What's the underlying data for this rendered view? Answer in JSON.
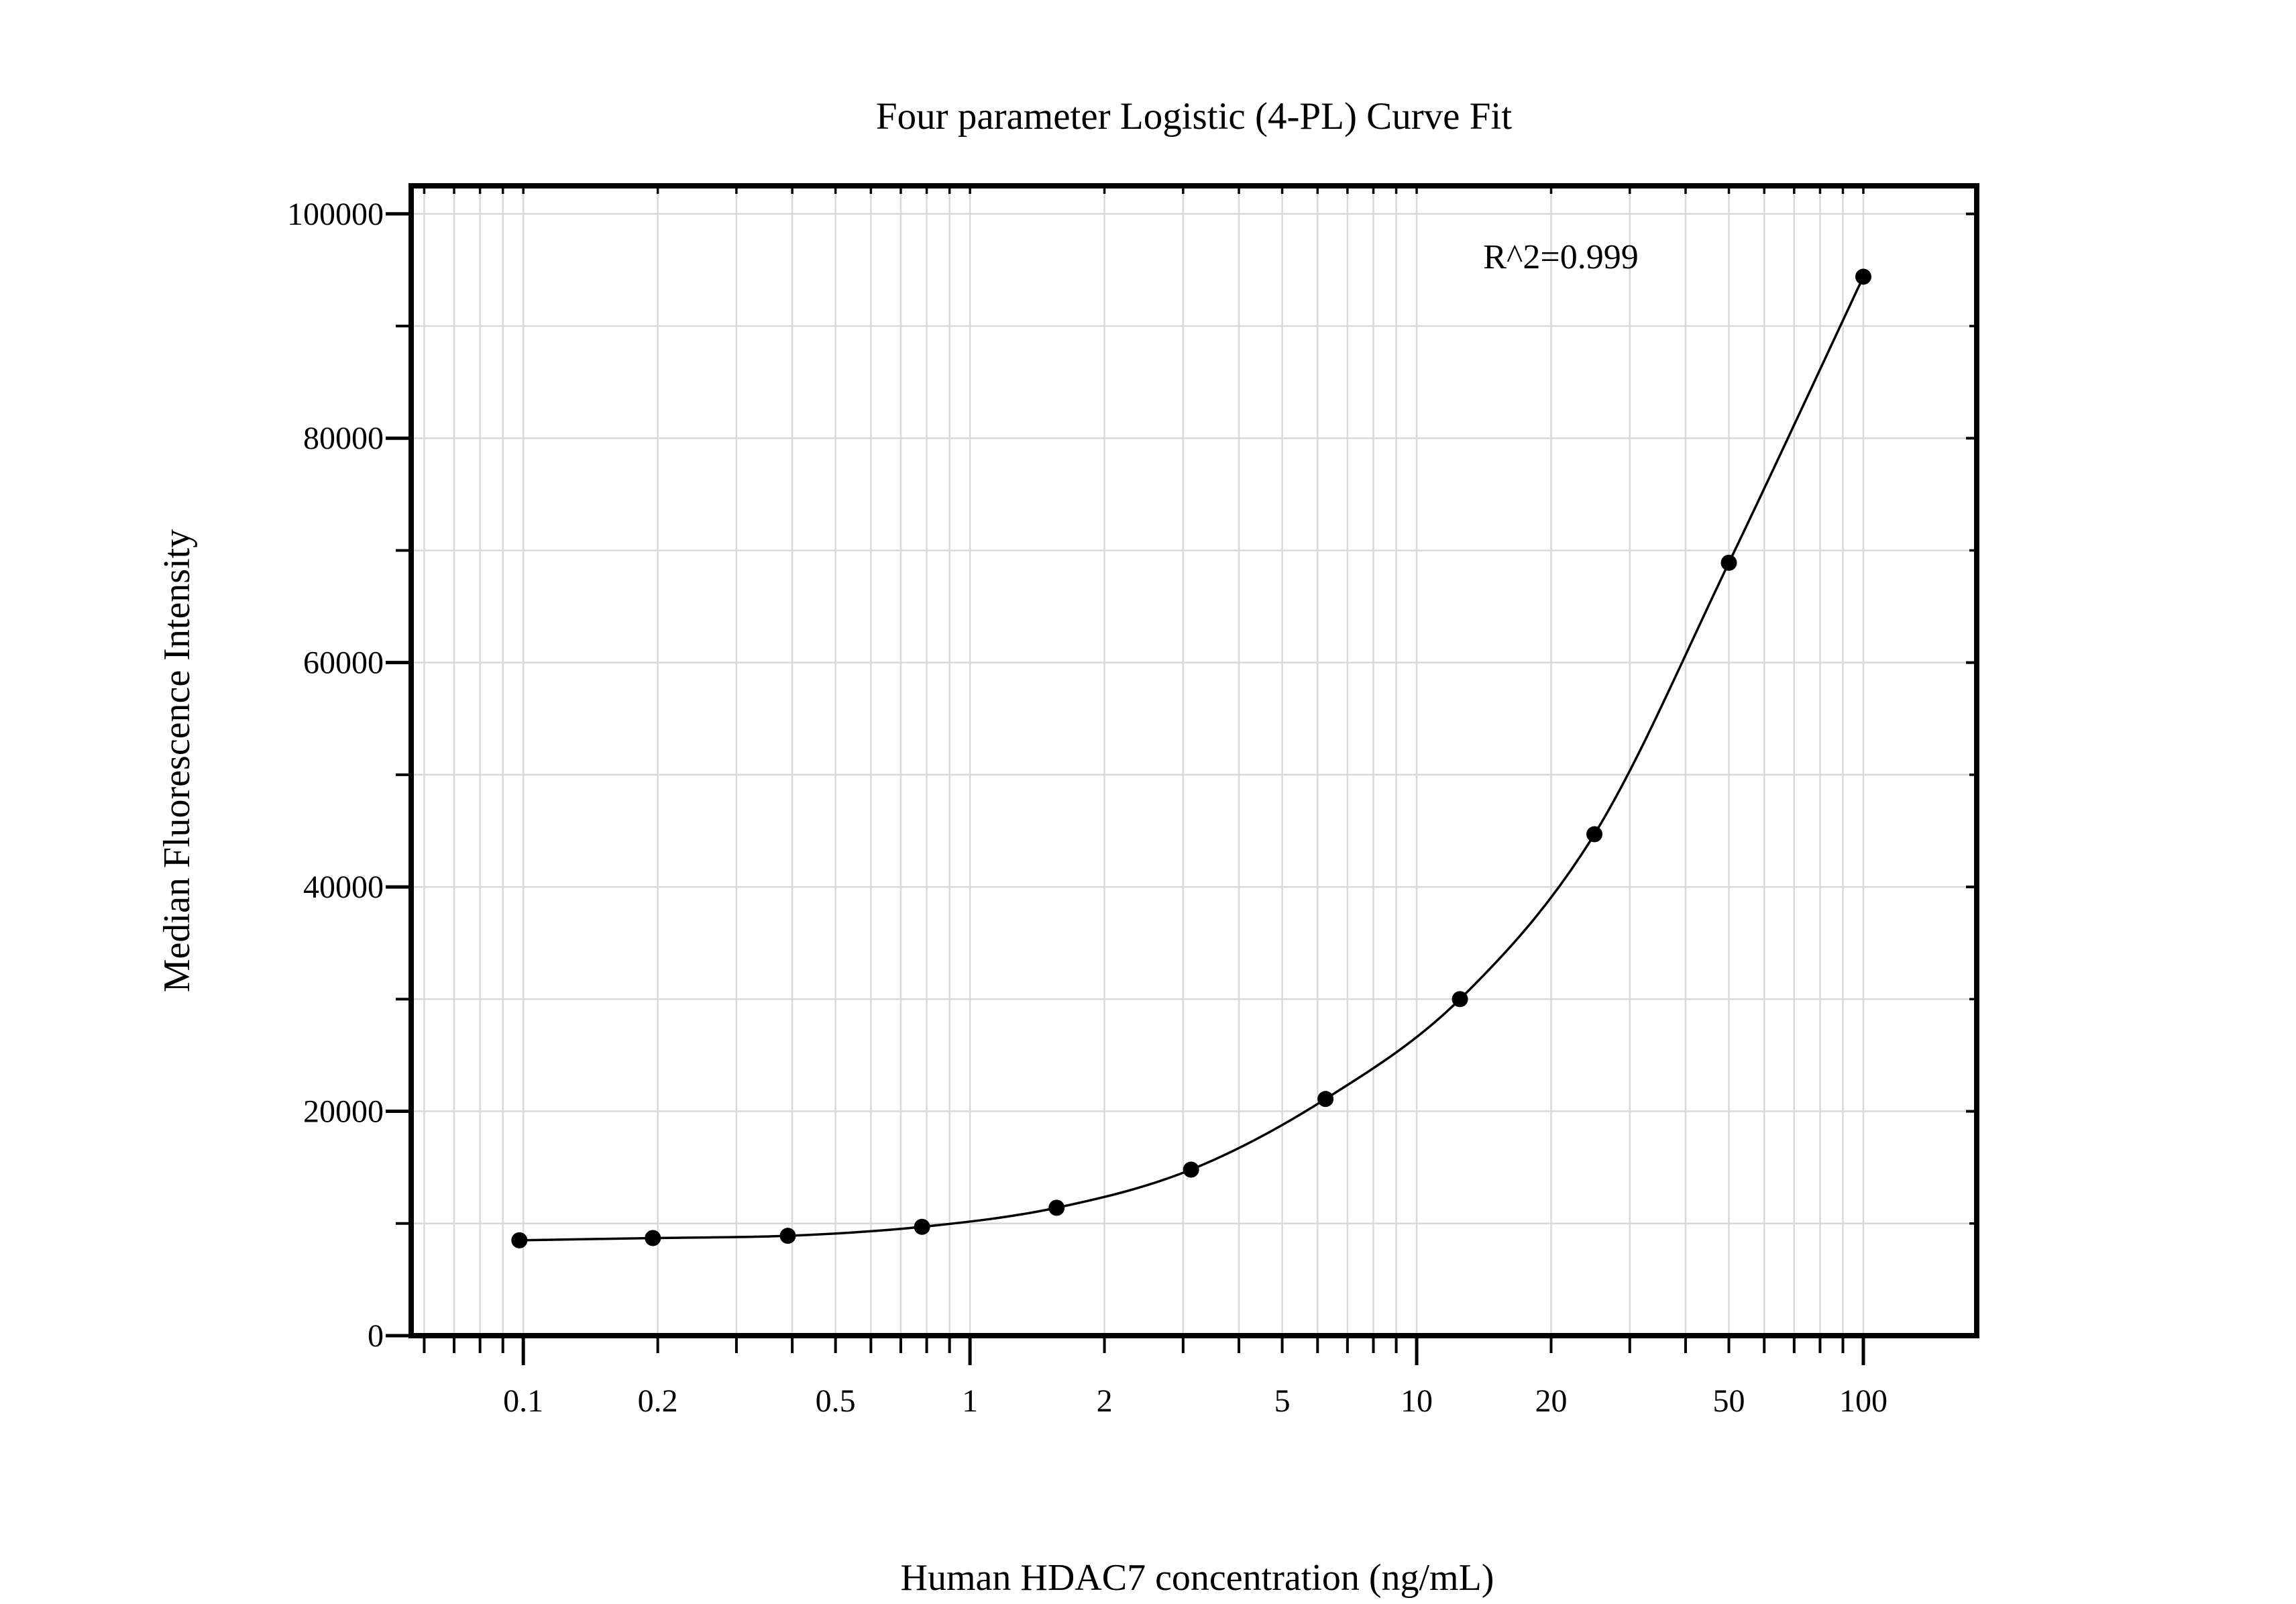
{
  "page": {
    "background": "#ffffff"
  },
  "chart_data": {
    "type": "scatter",
    "title": "Four parameter Logistic (4-PL) Curve Fit",
    "xlabel": "Human HDAC7 concentration (ng/mL)",
    "ylabel": "Median Fluorescence Intensity",
    "annotation": "R^2=0.999",
    "x_scale": "log",
    "y_scale": "linear",
    "xlim": [
      0.0561,
      179.4
    ],
    "ylim": [
      0,
      102500
    ],
    "grid": true,
    "legend_position": "none",
    "x_ticks": {
      "labels": [
        "0.1",
        "0.2",
        "0.5",
        "1",
        "2",
        "5",
        "10",
        "20",
        "50",
        "100"
      ],
      "labeled_values": [
        0.1,
        0.2,
        0.5,
        1,
        2,
        5,
        10,
        20,
        50,
        100
      ],
      "major_values": [
        0.1,
        1,
        10,
        100
      ],
      "all_values": [
        0.06,
        0.07,
        0.08,
        0.09,
        0.1,
        0.2,
        0.3,
        0.4,
        0.5,
        0.6,
        0.7,
        0.8,
        0.9,
        1,
        2,
        3,
        4,
        5,
        6,
        7,
        8,
        9,
        10,
        20,
        30,
        40,
        50,
        60,
        70,
        80,
        90,
        100
      ]
    },
    "y_ticks": {
      "labels": [
        "0",
        "20000",
        "40000",
        "60000",
        "80000",
        "100000"
      ],
      "major_values": [
        0,
        20000,
        40000,
        60000,
        80000,
        100000
      ],
      "minor_values": [
        10000,
        30000,
        50000,
        70000,
        90000
      ]
    },
    "series": [
      {
        "name": "standard curve points",
        "kind": "scatter",
        "x": [
          0.098,
          0.195,
          0.391,
          0.781,
          1.563,
          3.125,
          6.25,
          12.5,
          25,
          50,
          100
        ],
        "y": [
          8500,
          8700,
          8900,
          9700,
          11400,
          14800,
          21100,
          30000,
          44700,
          68900,
          94400
        ]
      },
      {
        "name": "4-PL fitted curve",
        "kind": "smooth-line",
        "through_series": "standard curve points"
      }
    ],
    "colors": {
      "points": "#000000",
      "curve": "#000000",
      "axis": "#000000",
      "grid": "#d9d9d9",
      "text": "#000000",
      "background": "#ffffff"
    }
  }
}
